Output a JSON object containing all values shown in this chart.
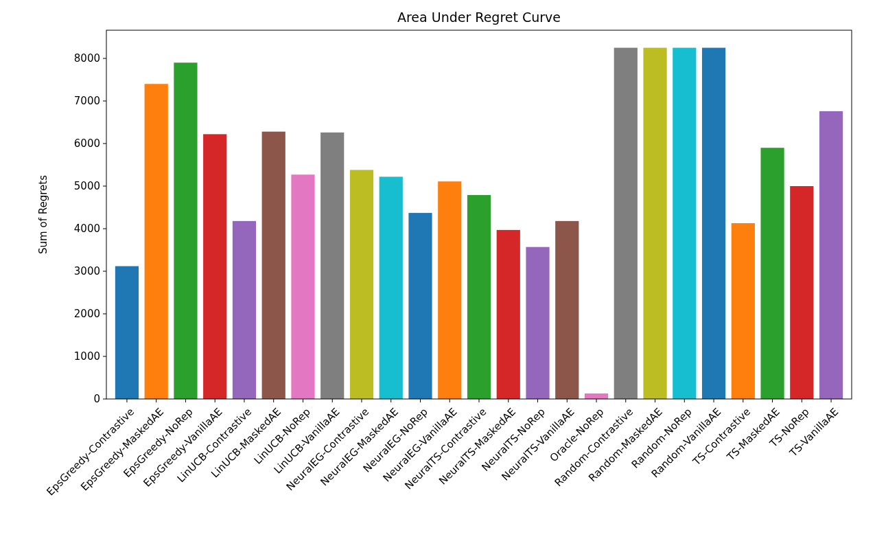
{
  "chart_data": {
    "type": "bar",
    "title": "Area Under Regret Curve",
    "ylabel": "Sum of Regrets",
    "categories": [
      "EpsGreedy-Contrastive",
      "EpsGreedy-MaskedAE",
      "EpsGreedy-NoRep",
      "EpsGreedy-VanillaAE",
      "LinUCB-Contrastive",
      "LinUCB-MaskedAE",
      "LinUCB-NoRep",
      "LinUCB-VanillaAE",
      "NeuralEG-Contrastive",
      "NeuralEG-MaskedAE",
      "NeuralEG-NoRep",
      "NeuralEG-VanillaAE",
      "NeuralTS-Contrastive",
      "NeuralTS-MaskedAE",
      "NeuralTS-NoRep",
      "NeuralTS-VanillaAE",
      "Oracle-NoRep",
      "Random-Contrastive",
      "Random-MaskedAE",
      "Random-NoRep",
      "Random-VanillaAE",
      "TS-Contrastive",
      "TS-MaskedAE",
      "TS-NoRep",
      "TS-VanillaAE"
    ],
    "values": [
      3120,
      7400,
      7900,
      6220,
      4180,
      6280,
      5270,
      6260,
      5380,
      5220,
      4370,
      5110,
      4790,
      3970,
      3570,
      4180,
      130,
      8250,
      8250,
      8250,
      8250,
      4130,
      5900,
      5000,
      6760
    ],
    "colors": [
      "#1f77b4",
      "#ff7f0e",
      "#2ca02c",
      "#d62728",
      "#9467bd",
      "#8c564b",
      "#e377c2",
      "#7f7f7f",
      "#bcbd22",
      "#17becf",
      "#1f77b4",
      "#ff7f0e",
      "#2ca02c",
      "#d62728",
      "#9467bd",
      "#8c564b",
      "#e377c2",
      "#7f7f7f",
      "#bcbd22",
      "#17becf",
      "#1f77b4",
      "#ff7f0e",
      "#2ca02c",
      "#d62728",
      "#9467bd"
    ],
    "ylim": [
      0,
      8662
    ],
    "yticks": [
      0,
      1000,
      2000,
      3000,
      4000,
      5000,
      6000,
      7000,
      8000
    ]
  }
}
